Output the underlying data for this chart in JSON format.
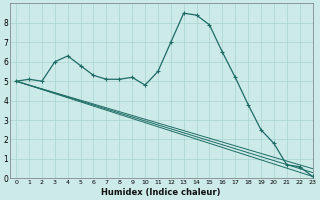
{
  "xlabel": "Humidex (Indice chaleur)",
  "background_color": "#cceae8",
  "grid_color": "#aad4d0",
  "line_color": "#1e6b65",
  "xlim": [
    -0.5,
    23
  ],
  "ylim": [
    0,
    9
  ],
  "xticks": [
    0,
    1,
    2,
    3,
    4,
    5,
    6,
    7,
    8,
    9,
    10,
    11,
    12,
    13,
    14,
    15,
    16,
    17,
    18,
    19,
    20,
    21,
    22,
    23
  ],
  "yticks": [
    0,
    1,
    2,
    3,
    4,
    5,
    6,
    7,
    8
  ],
  "main_series": {
    "x": [
      0,
      1,
      2,
      3,
      4,
      5,
      6,
      7,
      8,
      9,
      10,
      11,
      12,
      13,
      14,
      15,
      16,
      17,
      18,
      19,
      20,
      21,
      22,
      23
    ],
    "y": [
      5.0,
      5.1,
      5.0,
      6.0,
      6.3,
      5.8,
      5.3,
      5.1,
      5.1,
      5.2,
      4.8,
      5.5,
      7.0,
      8.5,
      8.4,
      7.9,
      6.5,
      5.2,
      3.8,
      2.5,
      1.8,
      0.7,
      0.6,
      0.1
    ]
  },
  "trend_lines": [
    {
      "x": [
        0,
        23
      ],
      "y": [
        5.0,
        0.1
      ]
    },
    {
      "x": [
        0,
        23
      ],
      "y": [
        5.0,
        0.3
      ]
    },
    {
      "x": [
        0,
        23
      ],
      "y": [
        5.0,
        0.5
      ]
    }
  ]
}
